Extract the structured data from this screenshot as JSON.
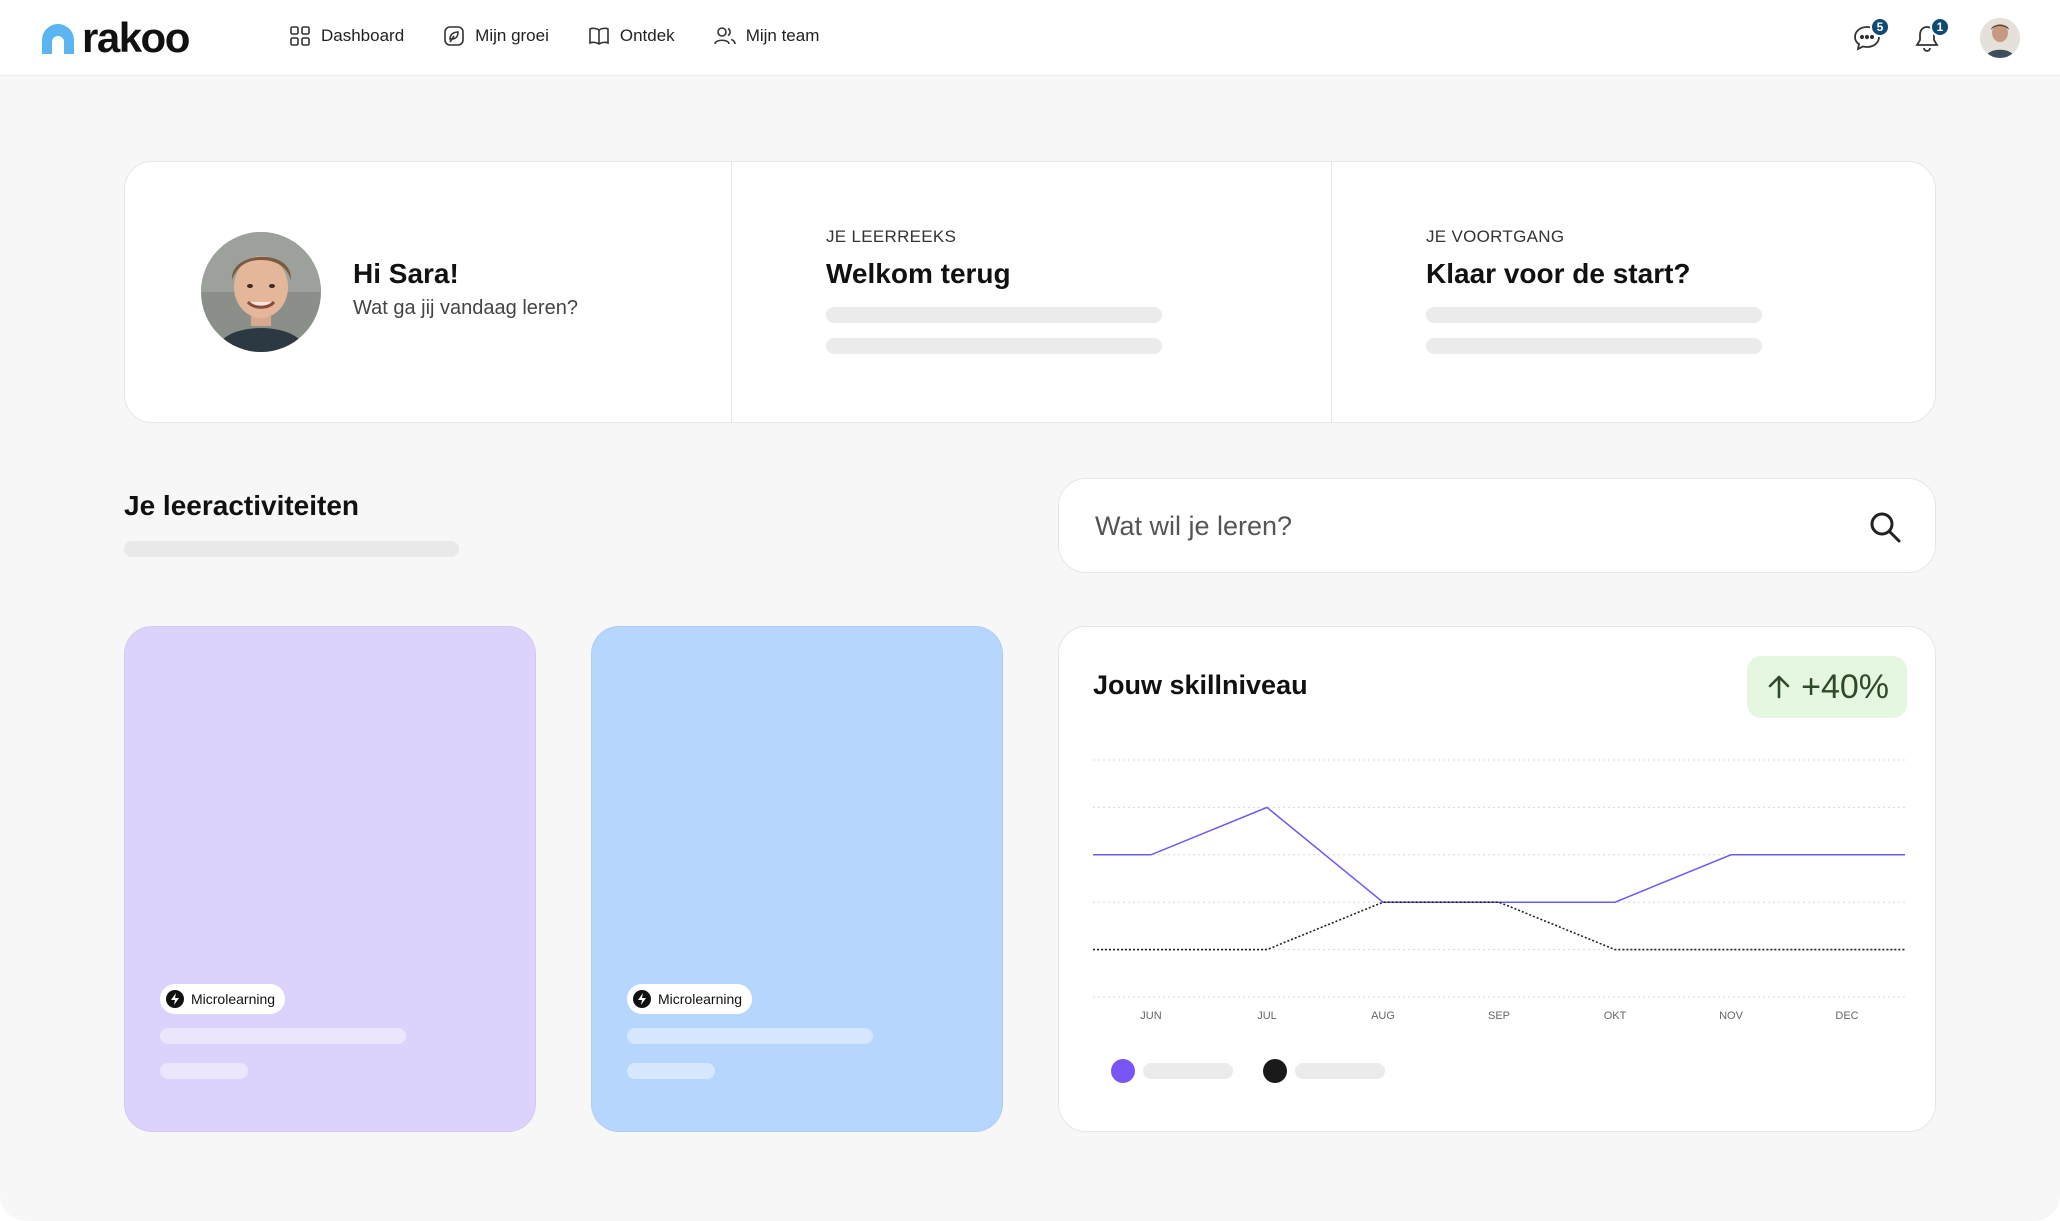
{
  "app": {
    "logo_text": "rakoo",
    "brand_color": "#5bb5f0"
  },
  "nav": {
    "items": [
      {
        "label": "Dashboard",
        "icon": "grid-icon"
      },
      {
        "label": "Mijn groei",
        "icon": "growth-icon"
      },
      {
        "label": "Ontdek",
        "icon": "book-icon"
      },
      {
        "label": "Mijn team",
        "icon": "team-icon"
      }
    ]
  },
  "header": {
    "messages_count": "5",
    "notifications_count": "1"
  },
  "hero": {
    "greeting": "Hi Sara!",
    "subtitle": "Wat ga jij vandaag leren?",
    "streak_eyebrow": "JE LEERREEKS",
    "streak_title": "Welkom terug",
    "progress_eyebrow": "JE VOORTGANG",
    "progress_title": "Klaar voor de start?"
  },
  "activities": {
    "title": "Je leeractiviteiten",
    "cards": [
      {
        "tag": "Microlearning",
        "color": "#ddd2fb"
      },
      {
        "tag": "Microlearning",
        "color": "#b7d6fd"
      }
    ]
  },
  "search": {
    "placeholder": "Wat wil je leren?"
  },
  "skills": {
    "title": "Jouw skillniveau",
    "delta": "+40%",
    "delta_color": "#e6f7e1"
  },
  "chart_data": {
    "type": "line",
    "categories": [
      "JUN",
      "JUL",
      "AUG",
      "SEP",
      "OKT",
      "NOV",
      "DEC"
    ],
    "series": [
      {
        "color": "#6b5cf0",
        "style": "solid",
        "values": [
          3,
          4,
          2,
          2,
          2,
          3,
          3
        ]
      },
      {
        "color": "#222222",
        "style": "dotted",
        "values": [
          1,
          1,
          2,
          2,
          1,
          1,
          1
        ]
      }
    ],
    "ylim": [
      0,
      5
    ],
    "grid": true,
    "legend": "bottom-left"
  }
}
